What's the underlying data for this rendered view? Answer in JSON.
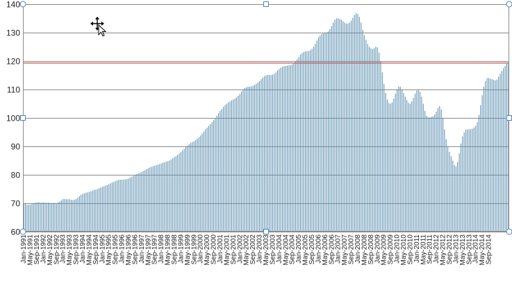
{
  "chart_data": {
    "type": "bar",
    "title": "",
    "xlabel": "",
    "ylabel": "",
    "ylim": [
      60,
      140
    ],
    "yticks": [
      60,
      70,
      80,
      90,
      100,
      110,
      120,
      130,
      140
    ],
    "grid": "horizontal",
    "legend": "none",
    "reference_line": {
      "value": 119.3,
      "color": "#c0504d"
    },
    "colors": {
      "bar": "#5b8fb0",
      "grid": "#8a8a8a",
      "frame": "#8a8a8a",
      "handle": "#4f81bd"
    },
    "x_start": "Jan-1991",
    "x_end": "Sep-2014",
    "x_tick_interval_months": 4,
    "x_ticks": [
      "Jan-1991",
      "May-1991",
      "Sep-1991",
      "Jan-1992",
      "May-1992",
      "Sep-1992",
      "Jan-1993",
      "May-1993",
      "Sep-1993",
      "Jan-1994",
      "May-1994",
      "Sep-1994",
      "Jan-1995",
      "May-1995",
      "Sep-1995",
      "Jan-1996",
      "May-1996",
      "Sep-1996",
      "Jan-1997",
      "May-1997",
      "Sep-1997",
      "Jan-1998",
      "May-1998",
      "Sep-1998",
      "Jan-1999",
      "May-1999",
      "Sep-1999",
      "Jan-2000",
      "May-2000",
      "Sep-2000",
      "Jan-2001",
      "May-2001",
      "Sep-2001",
      "Jan-2002",
      "May-2002",
      "Sep-2002",
      "Jan-2003",
      "May-2003",
      "Sep-2003",
      "Jan-2004",
      "May-2004",
      "Sep-2004",
      "Jan-2005",
      "May-2005",
      "Sep-2005",
      "Jan-2006",
      "May-2006",
      "Sep-2006",
      "Jan-2007",
      "May-2007",
      "Sep-2007",
      "Jan-2008",
      "May-2008",
      "Sep-2008",
      "Jan-2009",
      "May-2009",
      "Sep-2009",
      "Jan-2010",
      "May-2010",
      "Sep-2010",
      "Jan-2011",
      "May-2011",
      "Sep-2011",
      "Jan-2012",
      "May-2012",
      "Sep-2012",
      "Jan-2013",
      "May-2013",
      "Sep-2013",
      "Jan-2014",
      "May-2014",
      "Sep-2014"
    ],
    "values": [
      70.0,
      69.8,
      69.5,
      69.5,
      69.5,
      69.7,
      70.0,
      70.2,
      70.3,
      70.3,
      70.2,
      70.2,
      70.3,
      70.2,
      70.2,
      70.2,
      70.1,
      70.1,
      70.1,
      70.1,
      70.0,
      70.3,
      70.6,
      71.0,
      71.5,
      71.5,
      71.4,
      71.4,
      71.4,
      71.2,
      71.1,
      71.3,
      71.5,
      72.0,
      72.5,
      73.0,
      73.3,
      73.5,
      73.7,
      73.8,
      74.0,
      74.2,
      74.5,
      74.7,
      74.8,
      75.0,
      75.3,
      75.5,
      75.8,
      76.0,
      76.2,
      76.4,
      76.7,
      77.0,
      77.3,
      77.5,
      77.8,
      78.0,
      78.2,
      78.3,
      78.3,
      78.3,
      78.4,
      78.5,
      78.7,
      79.0,
      79.3,
      79.6,
      80.0,
      80.3,
      80.5,
      80.7,
      81.0,
      81.3,
      81.6,
      82.0,
      82.3,
      82.6,
      82.8,
      83.0,
      83.2,
      83.4,
      83.6,
      83.8,
      84.0,
      84.2,
      84.4,
      84.6,
      84.8,
      85.0,
      85.4,
      85.8,
      86.2,
      86.6,
      87.0,
      87.5,
      88.0,
      88.6,
      89.2,
      89.8,
      90.3,
      90.8,
      91.2,
      91.5,
      91.8,
      92.2,
      92.7,
      93.2,
      93.8,
      94.5,
      95.2,
      96.0,
      96.6,
      97.2,
      97.8,
      98.5,
      99.2,
      100.0,
      100.8,
      101.7,
      102.5,
      103.2,
      103.9,
      104.5,
      105.0,
      105.5,
      105.8,
      106.2,
      106.5,
      106.8,
      107.2,
      107.8,
      108.5,
      109.3,
      110.0,
      110.5,
      110.8,
      111.0,
      111.0,
      111.1,
      111.3,
      111.6,
      112.0,
      112.5,
      113.0,
      113.6,
      114.2,
      114.7,
      115.0,
      115.1,
      115.1,
      115.1,
      115.2,
      115.5,
      116.0,
      116.6,
      117.2,
      117.7,
      118.0,
      118.2,
      118.3,
      118.4,
      118.5,
      118.6,
      118.8,
      119.2,
      119.8,
      120.6,
      121.4,
      122.2,
      122.8,
      123.2,
      123.4,
      123.5,
      123.5,
      123.8,
      124.3,
      125.0,
      126.0,
      127.2,
      128.3,
      129.0,
      129.5,
      129.8,
      130.0,
      130.1,
      130.4,
      131.2,
      132.3,
      133.5,
      134.5,
      135.0,
      135.0,
      134.8,
      134.5,
      134.0,
      133.5,
      133.2,
      133.2,
      133.5,
      134.2,
      135.2,
      136.2,
      136.8,
      136.5,
      135.5,
      133.5,
      131.0,
      129.0,
      127.5,
      126.0,
      125.0,
      124.5,
      124.2,
      124.5,
      125.0,
      124.8,
      123.0,
      120.0,
      116.0,
      112.0,
      108.8,
      106.5,
      105.3,
      105.0,
      105.5,
      106.8,
      108.5,
      110.0,
      111.0,
      111.0,
      110.0,
      108.8,
      107.5,
      106.3,
      105.3,
      105.0,
      105.8,
      107.0,
      108.5,
      109.6,
      110.0,
      109.2,
      107.5,
      105.0,
      102.5,
      100.8,
      100.2,
      100.2,
      100.4,
      100.6,
      101.2,
      102.2,
      103.5,
      104.2,
      103.0,
      100.0,
      96.0,
      92.5,
      90.0,
      88.0,
      86.5,
      85.0,
      83.5,
      83.0,
      84.5,
      87.5,
      91.0,
      93.5,
      95.0,
      95.8,
      96.0,
      96.0,
      96.0,
      96.2,
      96.6,
      97.2,
      98.5,
      101.0,
      104.5,
      108.0,
      111.0,
      113.0,
      114.0,
      114.0,
      113.8,
      113.6,
      113.4,
      113.2,
      113.5,
      114.5,
      115.5,
      116.5,
      117.5,
      118.3,
      119.0,
      119.3
    ]
  }
}
